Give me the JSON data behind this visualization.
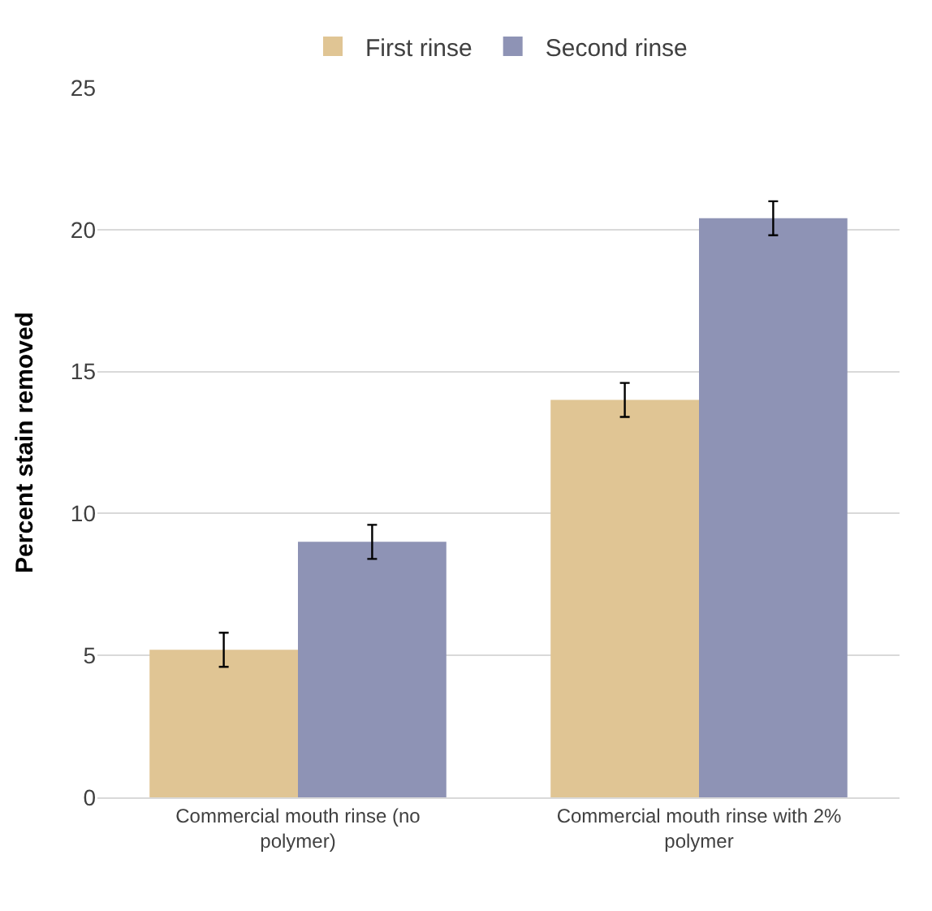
{
  "chart_data": {
    "type": "bar",
    "ylabel": "Percent stain removed",
    "categories": [
      "Commercial mouth rinse (no polymer)",
      "Commercial mouth rinse with 2% polymer"
    ],
    "series": [
      {
        "name": "First rinse",
        "color": "#e0c594",
        "values": [
          5.2,
          14.0
        ],
        "errors": [
          0.6,
          0.6
        ]
      },
      {
        "name": "Second rinse",
        "color": "#8e93b5",
        "values": [
          9.0,
          20.4
        ],
        "errors": [
          0.6,
          0.6
        ]
      }
    ],
    "ylim": [
      0,
      25
    ],
    "yticks": [
      0,
      5,
      10,
      15,
      20,
      25
    ],
    "grid": "y",
    "legend": "top"
  }
}
